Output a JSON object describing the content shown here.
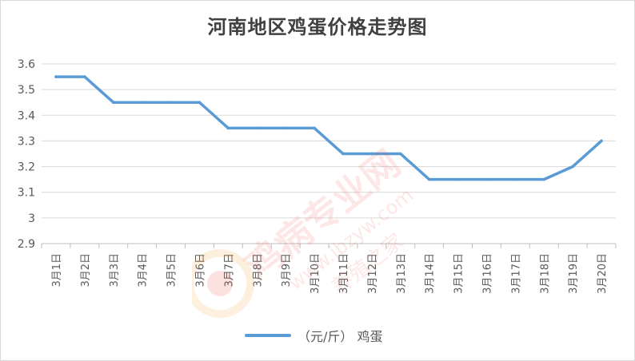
{
  "chart_data": {
    "type": "line",
    "title": "河南地区鸡蛋价格走势图",
    "categories": [
      "3月1日",
      "3月2日",
      "3月3日",
      "3月4日",
      "3月5日",
      "3月6日",
      "3月7日",
      "3月8日",
      "3月9日",
      "3月10日",
      "3月11日",
      "3月12日",
      "3月13日",
      "3月14日",
      "3月15日",
      "3月16日",
      "3月17日",
      "3月18日",
      "3月19日",
      "3月20日"
    ],
    "series": [
      {
        "name": "（元/斤）  鸡蛋",
        "color": "#5b9bd5",
        "values": [
          3.55,
          3.55,
          3.45,
          3.45,
          3.45,
          3.45,
          3.35,
          3.35,
          3.35,
          3.35,
          3.25,
          3.25,
          3.25,
          3.15,
          3.15,
          3.15,
          3.15,
          3.15,
          3.2,
          3.3
        ]
      }
    ],
    "yticks": [
      "3.6",
      "3.5",
      "3.4",
      "3.3",
      "3.2",
      "3.1",
      "3",
      "2.9"
    ],
    "ylim": [
      2.9,
      3.6
    ],
    "grid": true,
    "legend_position": "bottom"
  },
  "watermark": {
    "brand": "鸡病专业网",
    "url": "www.jbzyw.com",
    "slogan": "养殖之家"
  }
}
